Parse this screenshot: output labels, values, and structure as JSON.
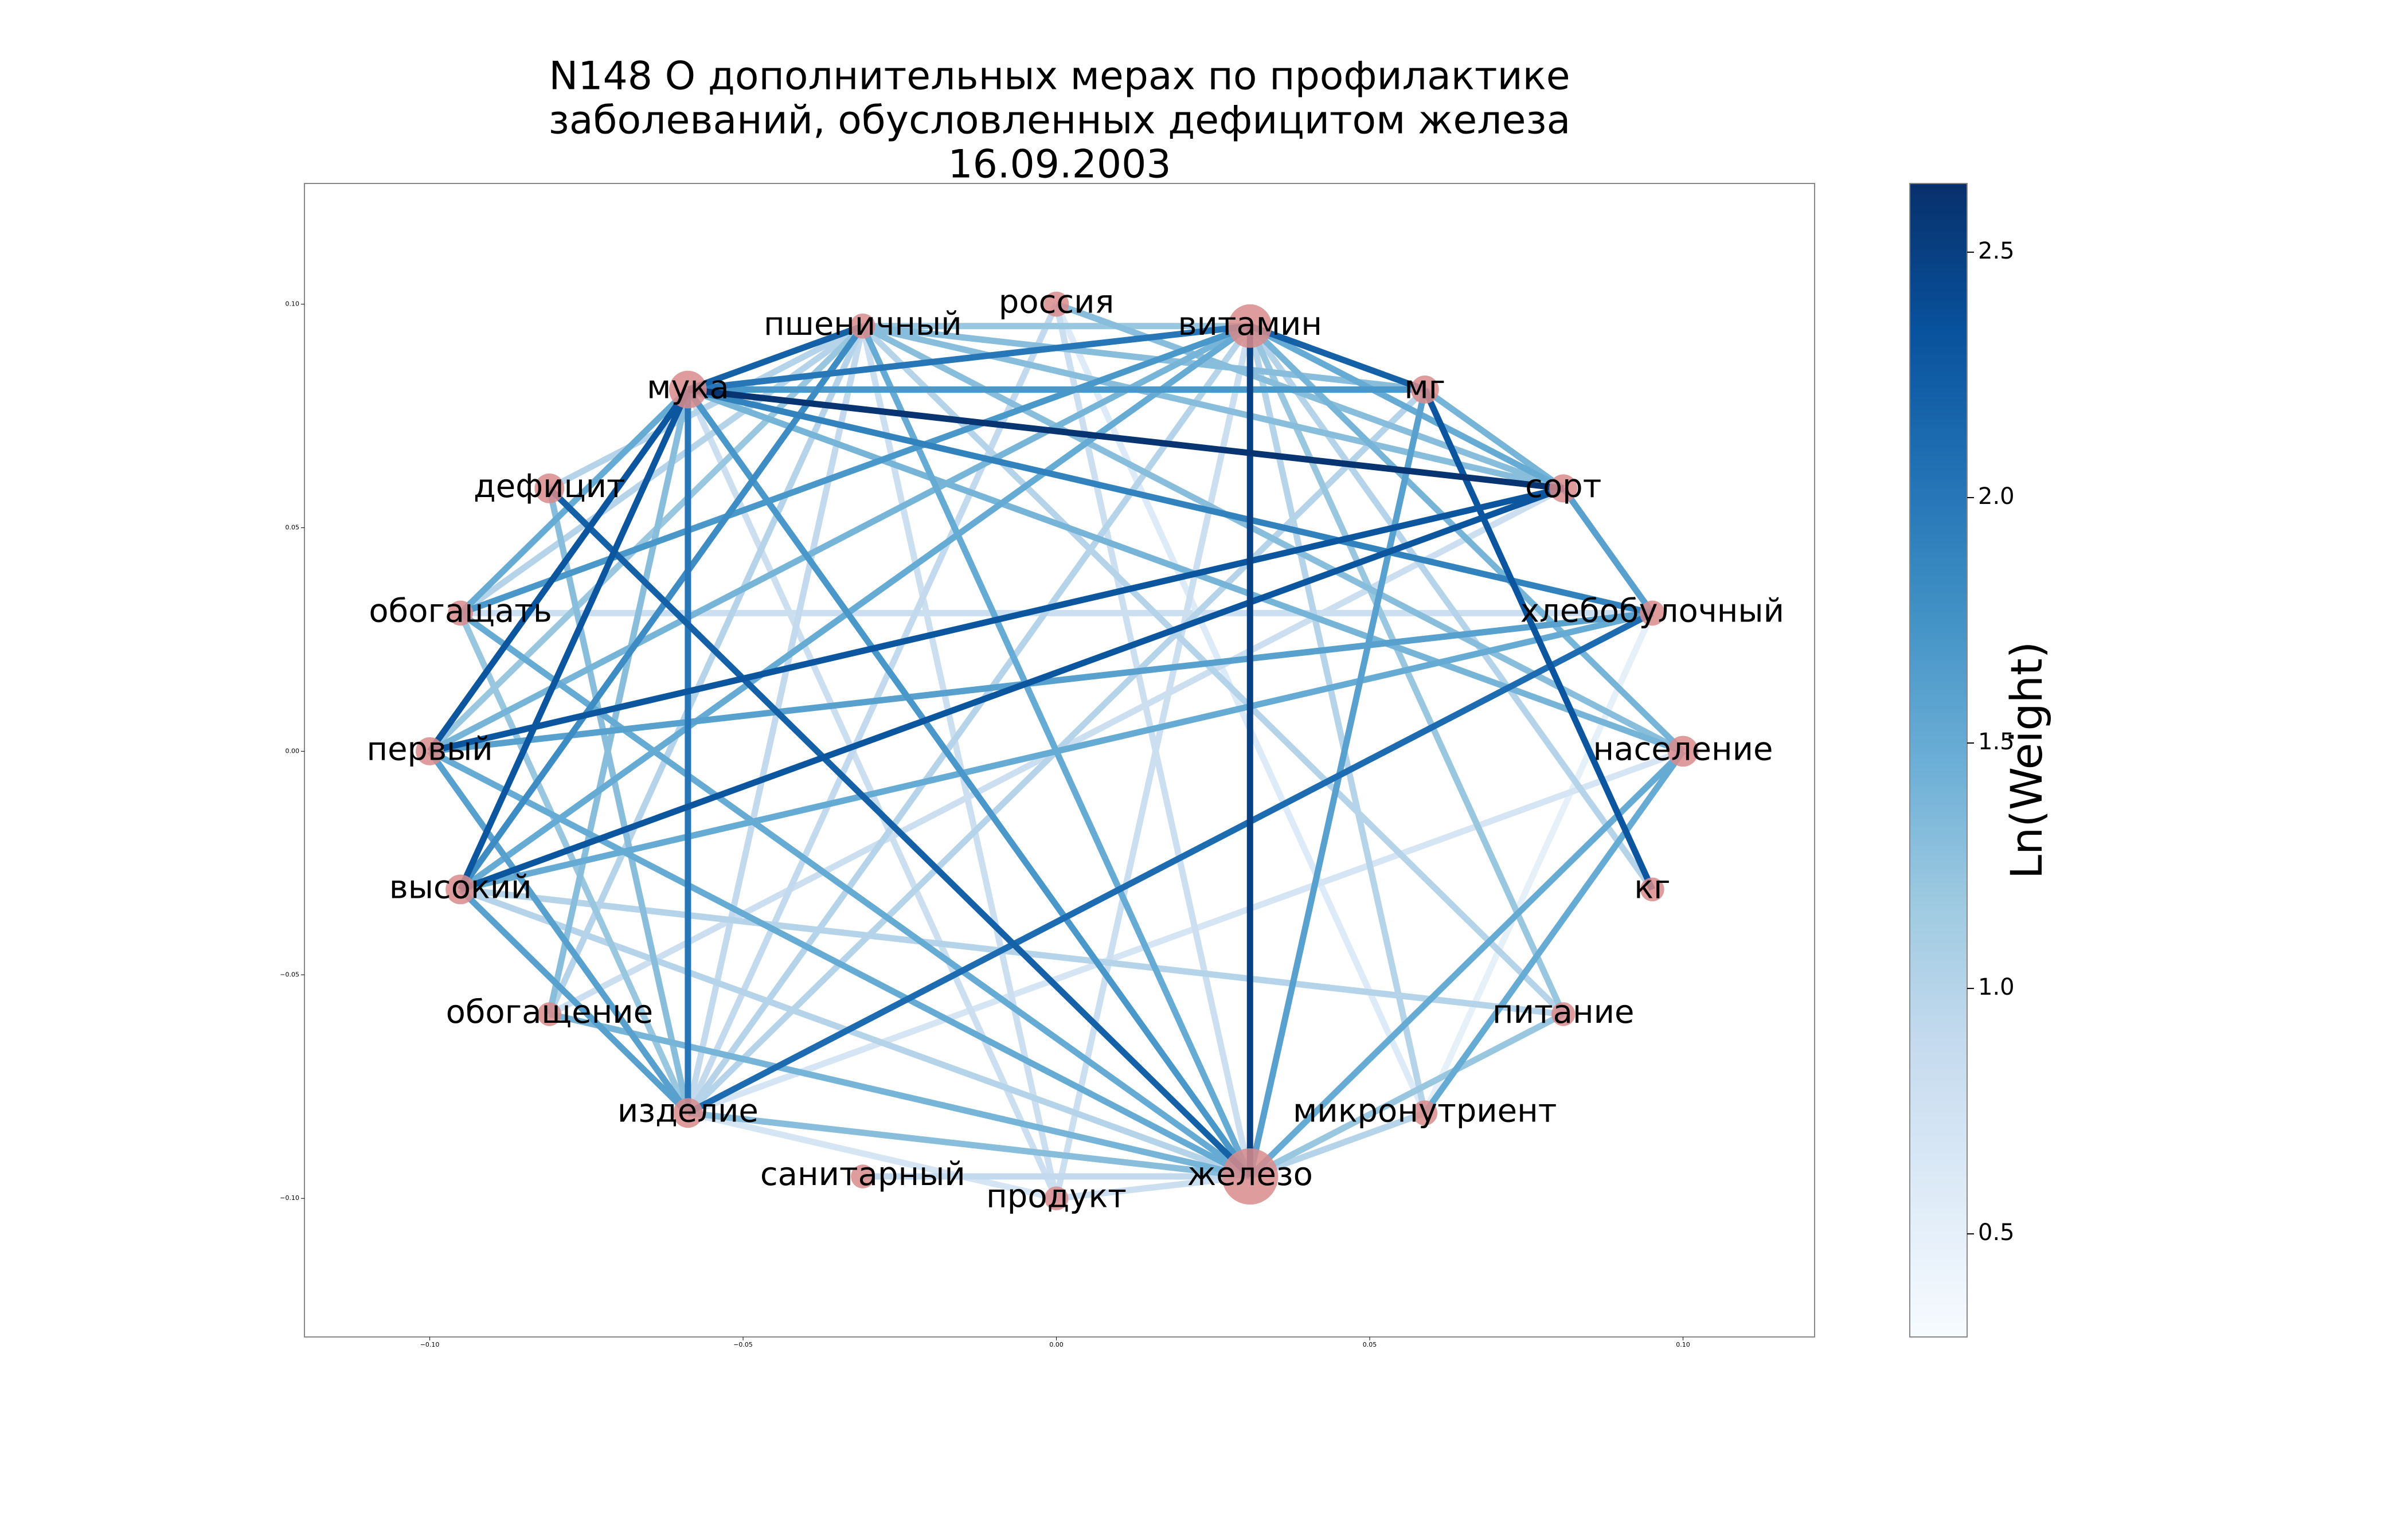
{
  "chart_data": {
    "type": "network",
    "title": [
      "N148 О дополнительных мерах по профилактике",
      "заболеваний, обусловленных дефицитом железа",
      "16.09.2003"
    ],
    "node_color": "#d98b8b",
    "cmap": "Blues",
    "xlim": [
      -0.12,
      0.121
    ],
    "ylim": [
      -0.131,
      0.127
    ],
    "xticks": [
      {
        "value": -0.1,
        "label": "−0.10"
      },
      {
        "value": -0.05,
        "label": "−0.05"
      },
      {
        "value": 0,
        "label": "0.00"
      },
      {
        "value": 0.05,
        "label": "0.05"
      },
      {
        "value": 0.1,
        "label": "0.10"
      }
    ],
    "yticks": [
      {
        "value": -0.1,
        "label": "−0.10"
      },
      {
        "value": -0.05,
        "label": "−0.05"
      },
      {
        "value": 0,
        "label": "0.00"
      },
      {
        "value": 0.05,
        "label": "0.05"
      },
      {
        "value": 0.1,
        "label": "0.10"
      }
    ],
    "colorbar": {
      "label": "Ln(Weight)",
      "lim": [
        0.29,
        2.64
      ],
      "ticks": [
        0.5,
        {
          "value": 1.0,
          "label": "1.0"
        },
        1.5,
        {
          "value": 2.0,
          "label": "2.0"
        },
        2.5
      ]
    },
    "nodes": [
      {
        "label": "население",
        "x": 0.1,
        "y": 0,
        "size": 300
      },
      {
        "label": "хлебобулочный",
        "x": 0.0951,
        "y": 0.0309,
        "size": 200
      },
      {
        "label": "сорт",
        "x": 0.0809,
        "y": 0.0588,
        "size": 250
      },
      {
        "label": "мг",
        "x": 0.0588,
        "y": 0.0809,
        "size": 250
      },
      {
        "label": "витамин",
        "x": 0.0309,
        "y": 0.0951,
        "size": 600
      },
      {
        "label": "россия",
        "x": 0,
        "y": 0.1,
        "size": 200
      },
      {
        "label": "пшеничный",
        "x": -0.0309,
        "y": 0.0951,
        "size": 200
      },
      {
        "label": "мука",
        "x": -0.0588,
        "y": 0.0809,
        "size": 450
      },
      {
        "label": "дефицит",
        "x": -0.0809,
        "y": 0.0588,
        "size": 280
      },
      {
        "label": "обогащать",
        "x": -0.0951,
        "y": 0.0309,
        "size": 200
      },
      {
        "label": "первый",
        "x": -0.1,
        "y": 0,
        "size": 250
      },
      {
        "label": "высокий",
        "x": -0.0951,
        "y": -0.0309,
        "size": 280
      },
      {
        "label": "обогащение",
        "x": -0.0809,
        "y": -0.0588,
        "size": 180
      },
      {
        "label": "изделие",
        "x": -0.0588,
        "y": -0.0809,
        "size": 280
      },
      {
        "label": "санитарный",
        "x": -0.0309,
        "y": -0.0951,
        "size": 180
      },
      {
        "label": "продукт",
        "x": 0,
        "y": -0.1,
        "size": 180
      },
      {
        "label": "железо",
        "x": 0.0309,
        "y": -0.0951,
        "size": 1000
      },
      {
        "label": "микронутриент",
        "x": 0.0588,
        "y": -0.0809,
        "size": 200
      },
      {
        "label": "питание",
        "x": 0.0809,
        "y": -0.0588,
        "size": 180
      },
      {
        "label": "кг",
        "x": 0.0951,
        "y": -0.0309,
        "size": 180
      }
    ],
    "edges": [
      {
        "source": "хлебобулочный",
        "target": "обогащать",
        "weight": 0.8
      },
      {
        "source": "россия",
        "target": "микронутриент",
        "weight": 0.6
      },
      {
        "source": "хлебобулочный",
        "target": "микронутриент",
        "weight": 0.5
      },
      {
        "source": "население",
        "target": "изделие",
        "weight": 0.7
      },
      {
        "source": "продукт",
        "target": "изделие",
        "weight": 0.7
      },
      {
        "source": "мука",
        "target": "продукт",
        "weight": 0.8
      },
      {
        "source": "россия",
        "target": "железо",
        "weight": 0.8
      },
      {
        "source": "продукт",
        "target": "пшеничный",
        "weight": 0.8
      },
      {
        "source": "витамин",
        "target": "продукт",
        "weight": 0.8
      },
      {
        "source": "сорт",
        "target": "обогащение",
        "weight": 0.8
      },
      {
        "source": "железо",
        "target": "продукт",
        "weight": 0.8
      },
      {
        "source": "россия",
        "target": "изделие",
        "weight": 0.9
      },
      {
        "source": "железо",
        "target": "санитарный",
        "weight": 0.9
      },
      {
        "source": "изделие",
        "target": "пшеничный",
        "weight": 0.9
      },
      {
        "source": "дефицит",
        "target": "пшеничный",
        "weight": 1.0
      },
      {
        "source": "витамин",
        "target": "кг",
        "weight": 1.0
      },
      {
        "source": "витамин",
        "target": "микронутриент",
        "weight": 1.0
      },
      {
        "source": "витамин",
        "target": "изделие",
        "weight": 1.0
      },
      {
        "source": "мг",
        "target": "изделие",
        "weight": 1.0
      },
      {
        "source": "питание",
        "target": "пшеничный",
        "weight": 1.0
      },
      {
        "source": "питание",
        "target": "высокий",
        "weight": 1.0
      },
      {
        "source": "железо",
        "target": "высокий",
        "weight": 1.0
      },
      {
        "source": "железо",
        "target": "микронутриент",
        "weight": 1.0
      },
      {
        "source": "обогащать",
        "target": "пшеничный",
        "weight": 1.0
      },
      {
        "source": "обогащение",
        "target": "пшеничный",
        "weight": 1.0
      },
      {
        "source": "витамин",
        "target": "пшеничный",
        "weight": 1.2
      },
      {
        "source": "витамин",
        "target": "питание",
        "weight": 1.2
      },
      {
        "source": "питание",
        "target": "железо",
        "weight": 1.2
      },
      {
        "source": "первый",
        "target": "пшеничный",
        "weight": 1.2
      },
      {
        "source": "обогащать",
        "target": "изделие",
        "weight": 1.2
      },
      {
        "source": "мука",
        "target": "обогащение",
        "weight": 1.3
      },
      {
        "source": "дефицит",
        "target": "изделие",
        "weight": 1.3
      },
      {
        "source": "мг",
        "target": "пшеничный",
        "weight": 1.3
      },
      {
        "source": "сорт",
        "target": "пшеничный",
        "weight": 1.3
      },
      {
        "source": "россия",
        "target": "сорт",
        "weight": 1.3
      },
      {
        "source": "население",
        "target": "пшеничный",
        "weight": 1.3
      },
      {
        "source": "железо",
        "target": "изделие",
        "weight": 1.3
      },
      {
        "source": "витамин",
        "target": "население",
        "weight": 1.4
      },
      {
        "source": "витамин",
        "target": "первый",
        "weight": 1.4
      },
      {
        "source": "мг",
        "target": "сорт",
        "weight": 1.4
      },
      {
        "source": "население",
        "target": "мука",
        "weight": 1.4
      },
      {
        "source": "железо",
        "target": "обогащение",
        "weight": 1.4
      },
      {
        "source": "мука",
        "target": "обогащать",
        "weight": 1.5
      },
      {
        "source": "витамин",
        "target": "сорт",
        "weight": 1.5
      },
      {
        "source": "витамин",
        "target": "высокий",
        "weight": 1.5
      },
      {
        "source": "хлебобулочный",
        "target": "высокий",
        "weight": 1.5
      },
      {
        "source": "население",
        "target": "железо",
        "weight": 1.5
      },
      {
        "source": "население",
        "target": "микронутриент",
        "weight": 1.5
      },
      {
        "source": "железо",
        "target": "обогащать",
        "weight": 1.5
      },
      {
        "source": "железо",
        "target": "первый",
        "weight": 1.5
      },
      {
        "source": "железо",
        "target": "пшеничный",
        "weight": 1.5
      },
      {
        "source": "мг",
        "target": "железо",
        "weight": 1.6
      },
      {
        "source": "сорт",
        "target": "хлебобулочный",
        "weight": 1.6
      },
      {
        "source": "хлебобулочный",
        "target": "первый",
        "weight": 1.6
      },
      {
        "source": "первый",
        "target": "изделие",
        "weight": 1.6
      },
      {
        "source": "высокий",
        "target": "изделие",
        "weight": 1.6
      },
      {
        "source": "мука",
        "target": "мг",
        "weight": 1.7
      },
      {
        "source": "мука",
        "target": "железо",
        "weight": 1.7
      },
      {
        "source": "витамин",
        "target": "обогащать",
        "weight": 1.7
      },
      {
        "source": "высокий",
        "target": "пшеничный",
        "weight": 1.8
      },
      {
        "source": "мука",
        "target": "хлебобулочный",
        "weight": 1.9
      },
      {
        "source": "мука",
        "target": "витамин",
        "weight": 2.0
      },
      {
        "source": "мука",
        "target": "изделие",
        "weight": 2.0
      },
      {
        "source": "хлебобулочный",
        "target": "изделие",
        "weight": 2.1
      },
      {
        "source": "мука",
        "target": "пшеничный",
        "weight": 2.2
      },
      {
        "source": "дефицит",
        "target": "железо",
        "weight": 2.2
      },
      {
        "source": "витамин",
        "target": "мг",
        "weight": 2.2
      },
      {
        "source": "мука",
        "target": "первый",
        "weight": 2.3
      },
      {
        "source": "мука",
        "target": "высокий",
        "weight": 2.3
      },
      {
        "source": "мг",
        "target": "кг",
        "weight": 2.3
      },
      {
        "source": "сорт",
        "target": "первый",
        "weight": 2.3
      },
      {
        "source": "сорт",
        "target": "высокий",
        "weight": 2.3
      },
      {
        "source": "витамин",
        "target": "железо",
        "weight": 2.5
      },
      {
        "source": "мука",
        "target": "сорт",
        "weight": 2.6
      }
    ]
  }
}
